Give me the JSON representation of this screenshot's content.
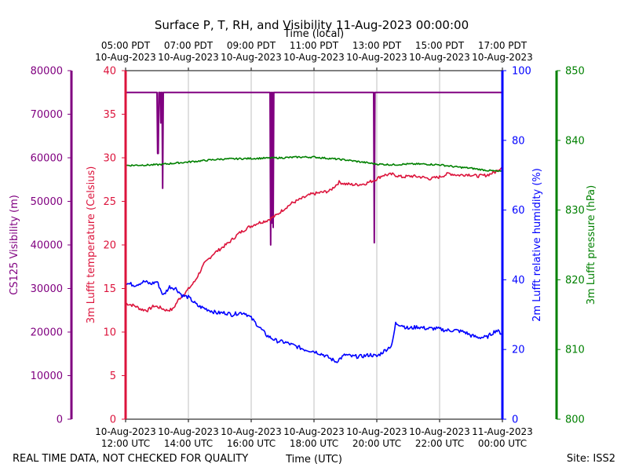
{
  "chart_data": {
    "type": "line",
    "title": "Surface P, T, RH, and Visibility 11-Aug-2023 00:00:00",
    "top_axis_label": "Time (local)",
    "xlabel": "Time (UTC)",
    "xlim_hours_utc": [
      12,
      24
    ],
    "grid": true,
    "footer_left": "REAL TIME DATA, NOT CHECKED FOR QUALITY",
    "footer_right": "Site: ISS2",
    "bottom_ticks": [
      {
        "hour": 12,
        "date": "10-Aug-2023",
        "time": "12:00 UTC"
      },
      {
        "hour": 14,
        "date": "10-Aug-2023",
        "time": "14:00 UTC"
      },
      {
        "hour": 16,
        "date": "10-Aug-2023",
        "time": "16:00 UTC"
      },
      {
        "hour": 18,
        "date": "10-Aug-2023",
        "time": "18:00 UTC"
      },
      {
        "hour": 20,
        "date": "10-Aug-2023",
        "time": "20:00 UTC"
      },
      {
        "hour": 22,
        "date": "10-Aug-2023",
        "time": "22:00 UTC"
      },
      {
        "hour": 24,
        "date": "11-Aug-2023",
        "time": "00:00 UTC"
      }
    ],
    "top_ticks": [
      {
        "hour": 12,
        "time": "05:00 PDT",
        "date": "10-Aug-2023"
      },
      {
        "hour": 14,
        "time": "07:00 PDT",
        "date": "10-Aug-2023"
      },
      {
        "hour": 16,
        "time": "09:00 PDT",
        "date": "10-Aug-2023"
      },
      {
        "hour": 18,
        "time": "11:00 PDT",
        "date": "10-Aug-2023"
      },
      {
        "hour": 20,
        "time": "13:00 PDT",
        "date": "10-Aug-2023"
      },
      {
        "hour": 22,
        "time": "15:00 PDT",
        "date": "10-Aug-2023"
      },
      {
        "hour": 24,
        "time": "17:00 PDT",
        "date": "10-Aug-2023"
      }
    ],
    "axes": [
      {
        "key": "visibility",
        "label": "CS125 Visibility (m)",
        "color": "#800080",
        "ylim": [
          0,
          80000
        ],
        "ticks": [
          0,
          10000,
          20000,
          30000,
          40000,
          50000,
          60000,
          70000,
          80000
        ]
      },
      {
        "key": "temperature",
        "label": "3m Lufft temperature (Celsius)",
        "color": "#dc143c",
        "ylim": [
          0,
          40
        ],
        "ticks": [
          0,
          5,
          10,
          15,
          20,
          25,
          30,
          35,
          40
        ]
      },
      {
        "key": "humidity",
        "label": "2m Lufft relative humidity (%)",
        "color": "#0000ff",
        "ylim": [
          0,
          100
        ],
        "ticks": [
          0,
          20,
          40,
          60,
          80,
          100
        ]
      },
      {
        "key": "pressure",
        "label": "3m Lufft pressure (hPa)",
        "color": "#008000",
        "ylim": [
          800,
          850
        ],
        "ticks": [
          800,
          810,
          820,
          830,
          840,
          850
        ]
      }
    ],
    "series": [
      {
        "name": "CS125 Visibility",
        "axis": "visibility",
        "x": [
          12.0,
          13.0,
          13.02,
          13.04,
          13.06,
          13.1,
          13.12,
          13.14,
          13.16,
          13.18,
          13.2,
          13.22,
          13.24,
          16.6,
          16.62,
          16.64,
          16.66,
          16.68,
          16.7,
          16.72,
          19.9,
          19.92,
          19.94,
          24.0
        ],
        "values": [
          75000,
          75000,
          61000,
          61000,
          75000,
          75000,
          68000,
          75000,
          75000,
          53000,
          75000,
          75000,
          75000,
          75000,
          40000,
          75000,
          45000,
          75000,
          44000,
          75000,
          75000,
          40500,
          75000,
          75000
        ]
      },
      {
        "name": "3m Lufft temperature",
        "axis": "temperature",
        "x": [
          12.0,
          12.3,
          12.5,
          12.7,
          12.9,
          13.1,
          13.3,
          13.5,
          13.7,
          13.9,
          14.2,
          14.5,
          14.8,
          15.0,
          15.3,
          15.6,
          15.9,
          16.2,
          16.5,
          16.8,
          17.0,
          17.3,
          17.6,
          17.9,
          18.2,
          18.5,
          18.8,
          19.0,
          19.3,
          19.6,
          19.9,
          20.2,
          20.5,
          20.8,
          21.1,
          21.4,
          21.7,
          22.0,
          22.3,
          22.6,
          22.9,
          23.2,
          23.5,
          23.8,
          24.0
        ],
        "values": [
          13.3,
          13.0,
          12.6,
          12.5,
          13.0,
          12.8,
          12.5,
          12.6,
          13.8,
          14.5,
          15.8,
          17.8,
          19.0,
          19.5,
          20.3,
          21.3,
          22.0,
          22.5,
          22.8,
          23.4,
          24.0,
          24.8,
          25.3,
          25.8,
          26.0,
          26.2,
          27.2,
          27.0,
          26.9,
          27.0,
          27.4,
          28.0,
          28.1,
          27.8,
          27.9,
          27.8,
          27.6,
          27.8,
          28.2,
          28.0,
          28.1,
          27.9,
          28.0,
          28.4,
          29.0
        ]
      },
      {
        "name": "2m Lufft relative humidity",
        "axis": "humidity",
        "x": [
          12.0,
          12.3,
          12.6,
          12.8,
          13.0,
          13.2,
          13.4,
          13.6,
          13.8,
          14.0,
          14.3,
          14.6,
          14.9,
          15.2,
          15.4,
          15.6,
          15.8,
          16.0,
          16.2,
          16.5,
          16.8,
          17.1,
          17.4,
          17.7,
          18.0,
          18.3,
          18.5,
          18.7,
          19.0,
          19.2,
          19.5,
          19.8,
          20.0,
          20.3,
          20.45,
          20.5,
          20.6,
          20.8,
          21.0,
          21.3,
          21.6,
          21.9,
          22.2,
          22.5,
          22.8,
          23.0,
          23.2,
          23.5,
          23.8,
          24.0
        ],
        "values": [
          39.0,
          38.5,
          39.5,
          38.8,
          39.5,
          35.5,
          38.0,
          37.5,
          35.5,
          35.0,
          32.5,
          31.5,
          30.5,
          30.5,
          30.0,
          30.5,
          30.5,
          29.0,
          27.0,
          24.0,
          22.5,
          22.0,
          21.0,
          20.0,
          19.5,
          18.5,
          17.5,
          16.5,
          18.5,
          18.0,
          18.0,
          18.5,
          18.0,
          20.0,
          21.0,
          22.0,
          27.5,
          27.0,
          26.0,
          26.5,
          26.0,
          26.0,
          25.5,
          25.5,
          25.0,
          24.0,
          23.5,
          23.5,
          25.5,
          24.5
        ]
      },
      {
        "name": "3m Lufft pressure",
        "axis": "pressure",
        "x": [
          12.0,
          13.0,
          14.0,
          15.0,
          16.0,
          17.0,
          17.5,
          18.0,
          18.5,
          19.0,
          19.5,
          20.0,
          20.5,
          21.0,
          21.5,
          22.0,
          22.5,
          23.0,
          23.5,
          24.0
        ],
        "values": [
          836.4,
          836.5,
          836.9,
          837.3,
          837.4,
          837.5,
          837.6,
          837.6,
          837.4,
          837.2,
          836.9,
          836.6,
          836.5,
          836.6,
          836.6,
          836.5,
          836.2,
          836.0,
          835.7,
          835.5
        ]
      }
    ]
  }
}
